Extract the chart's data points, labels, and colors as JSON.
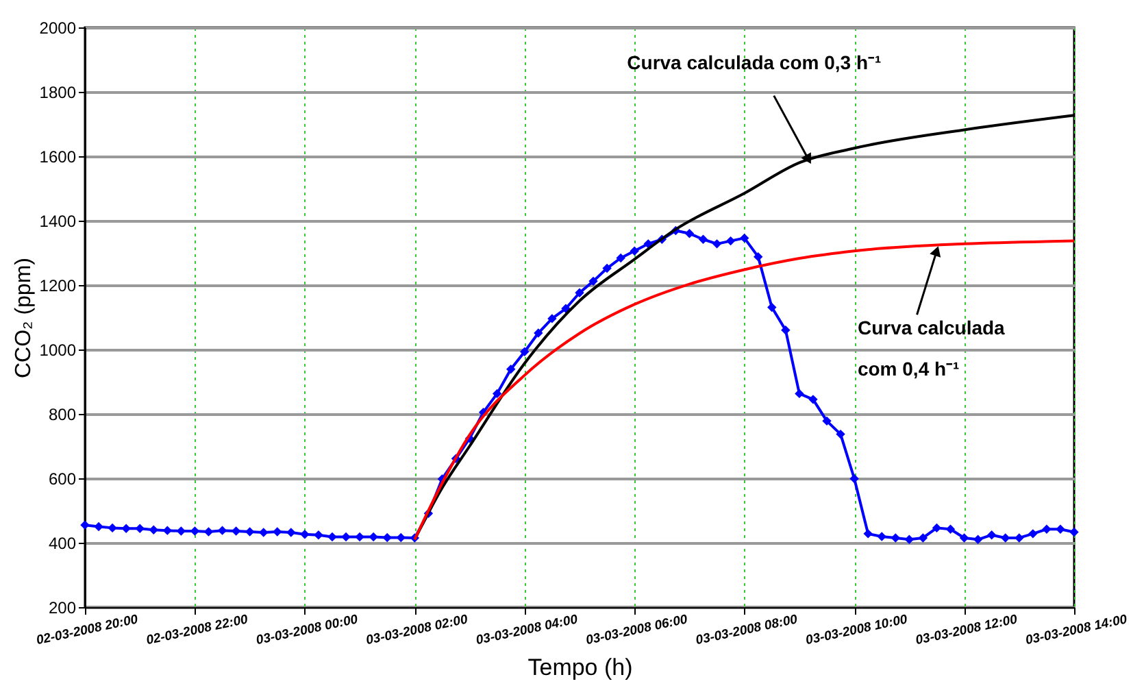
{
  "chart_data": {
    "type": "line",
    "xlabel": "Tempo (h)",
    "ylabel": "CCO₂ (ppm)",
    "x": [
      "2008-03-02T20:00",
      "2008-03-02T20:15",
      "2008-03-02T20:30",
      "2008-03-02T20:45",
      "2008-03-02T21:00",
      "2008-03-02T21:15",
      "2008-03-02T21:30",
      "2008-03-02T21:45",
      "2008-03-02T22:00",
      "2008-03-02T22:15",
      "2008-03-02T22:30",
      "2008-03-02T22:45",
      "2008-03-02T23:00",
      "2008-03-02T23:15",
      "2008-03-02T23:30",
      "2008-03-02T23:45",
      "2008-03-03T00:00",
      "2008-03-03T00:15",
      "2008-03-03T00:30",
      "2008-03-03T00:45",
      "2008-03-03T01:00",
      "2008-03-03T01:15",
      "2008-03-03T01:30",
      "2008-03-03T01:45",
      "2008-03-03T02:00",
      "2008-03-03T02:15",
      "2008-03-03T02:30",
      "2008-03-03T02:45",
      "2008-03-03T03:00",
      "2008-03-03T03:15",
      "2008-03-03T03:30",
      "2008-03-03T03:45",
      "2008-03-03T04:00",
      "2008-03-03T04:15",
      "2008-03-03T04:30",
      "2008-03-03T04:45",
      "2008-03-03T05:00",
      "2008-03-03T05:15",
      "2008-03-03T05:30",
      "2008-03-03T05:45",
      "2008-03-03T06:00",
      "2008-03-03T06:15",
      "2008-03-03T06:30",
      "2008-03-03T06:45",
      "2008-03-03T07:00",
      "2008-03-03T07:15",
      "2008-03-03T07:30",
      "2008-03-03T07:45",
      "2008-03-03T08:00",
      "2008-03-03T08:15",
      "2008-03-03T08:30",
      "2008-03-03T08:45",
      "2008-03-03T09:00",
      "2008-03-03T09:15",
      "2008-03-03T09:30",
      "2008-03-03T09:45",
      "2008-03-03T10:00",
      "2008-03-03T10:15",
      "2008-03-03T10:30",
      "2008-03-03T10:45",
      "2008-03-03T11:00",
      "2008-03-03T11:15",
      "2008-03-03T11:30",
      "2008-03-03T11:45",
      "2008-03-03T12:00",
      "2008-03-03T12:15",
      "2008-03-03T12:30",
      "2008-03-03T12:45",
      "2008-03-03T13:00",
      "2008-03-03T13:15",
      "2008-03-03T13:30",
      "2008-03-03T13:45",
      "2008-03-03T14:00"
    ],
    "series": [
      {
        "color": "#0000ff",
        "marker": "diamond",
        "values": [
          455,
          450,
          446,
          444,
          444,
          440,
          438,
          436,
          436,
          434,
          438,
          436,
          434,
          432,
          434,
          432,
          426,
          424,
          418,
          418,
          418,
          418,
          416,
          416,
          415,
          491,
          598,
          661,
          724,
          805,
          863,
          939,
          993,
          1051,
          1096,
          1127,
          1176,
          1212,
          1252,
          1284,
          1306,
          1328,
          1342,
          1369,
          1360,
          1342,
          1328,
          1337,
          1346,
          1288,
          1131,
          1060,
          863,
          845,
          778,
          737,
          599,
          428,
          419,
          415,
          410,
          415,
          446,
          442,
          415,
          410,
          424,
          415,
          415,
          428,
          442,
          442,
          433
        ]
      },
      {
        "color": "#000000",
        "marker": "none",
        "x": [
          "2008-03-03T02:00",
          "2008-03-03T02:30",
          "2008-03-03T03:00",
          "2008-03-03T04:00",
          "2008-03-03T05:00",
          "2008-03-03T06:00",
          "2008-03-03T06:45",
          "2008-03-03T08:00",
          "2008-03-03T09:00",
          "2008-03-03T10:00",
          "2008-03-03T12:00",
          "2008-03-03T14:00"
        ],
        "values": [
          410,
          570,
          700,
          957,
          1151,
          1280,
          1373,
          1485,
          1580,
          1625,
          1682,
          1727
        ]
      },
      {
        "color": "#ff0000",
        "marker": "none",
        "x": [
          "2008-03-03T02:00",
          "2008-03-03T02:30",
          "2008-03-03T03:00",
          "2008-03-03T04:00",
          "2008-03-03T05:00",
          "2008-03-03T06:00",
          "2008-03-03T07:00",
          "2008-03-03T08:00",
          "2008-03-03T09:00",
          "2008-03-03T10:00",
          "2008-03-03T12:00",
          "2008-03-03T14:00"
        ],
        "values": [
          410,
          585,
          735,
          920,
          1050,
          1140,
          1203,
          1248,
          1283,
          1306,
          1328,
          1337
        ]
      }
    ],
    "xlim": [
      "2008-03-02T20:00",
      "2008-03-03T14:00"
    ],
    "xticks": [
      {
        "value": "2008-03-02T20:00",
        "label": "02-03-2008 20:00"
      },
      {
        "value": "2008-03-02T22:00",
        "label": "02-03-2008 22:00"
      },
      {
        "value": "2008-03-03T00:00",
        "label": "03-03-2008 00:00"
      },
      {
        "value": "2008-03-03T02:00",
        "label": "03-03-2008 02:00"
      },
      {
        "value": "2008-03-03T04:00",
        "label": "03-03-2008 04:00"
      },
      {
        "value": "2008-03-03T06:00",
        "label": "03-03-2008 06:00"
      },
      {
        "value": "2008-03-03T08:00",
        "label": "03-03-2008 08:00"
      },
      {
        "value": "2008-03-03T10:00",
        "label": "03-03-2008 10:00"
      },
      {
        "value": "2008-03-03T12:00",
        "label": "03-03-2008 12:00"
      },
      {
        "value": "2008-03-03T14:00",
        "label": "03-03-2008 14:00"
      }
    ],
    "ylim": [
      200,
      2000
    ],
    "yticks": [
      200,
      400,
      600,
      800,
      1000,
      1200,
      1400,
      1600,
      1800,
      2000
    ],
    "grid": true,
    "annotations": [
      {
        "text": "Curva calculada com 0,3 h⁻¹",
        "x": "2008-03-03T09:10",
        "y": 1590
      },
      {
        "text": "Curva calculada\ncom 0,4 h⁻¹",
        "x": "2008-03-03T11:30",
        "y": 1306
      }
    ]
  }
}
